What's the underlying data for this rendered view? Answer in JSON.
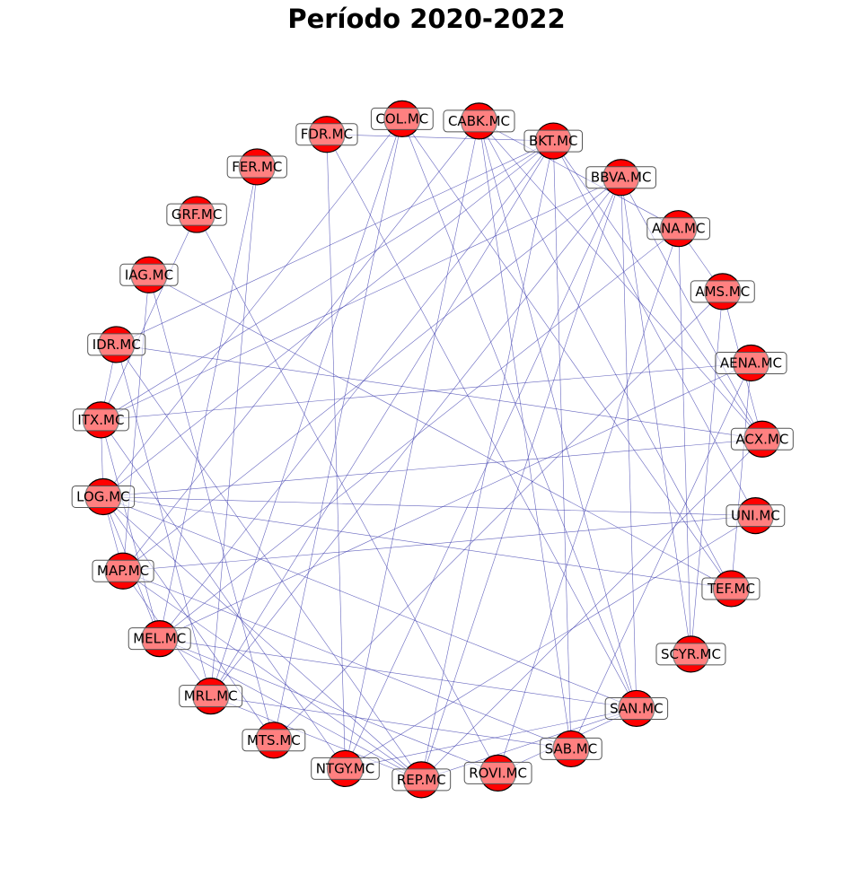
{
  "title": "Período 2020-2022",
  "colors": {
    "node_fill": "#ff0000",
    "node_stroke": "#000000",
    "label_box_fill": "#ffffff",
    "label_box_stroke": "#555555",
    "edge": "#3333aa"
  },
  "nodes": [
    "COL.MC",
    "CABK.MC",
    "BKT.MC",
    "BBVA.MC",
    "ANA.MC",
    "AMS.MC",
    "AENA.MC",
    "ACX.MC",
    "UNI.MC",
    "TEF.MC",
    "SCYR.MC",
    "SAN.MC",
    "SAB.MC",
    "ROVI.MC",
    "REP.MC",
    "NTGY.MC",
    "MTS.MC",
    "MRL.MC",
    "MEL.MC",
    "MAP.MC",
    "LOG.MC",
    "ITX.MC",
    "IDR.MC",
    "IAG.MC",
    "GRF.MC",
    "FER.MC",
    "FDR.MC"
  ],
  "edges": [
    [
      "COL.MC",
      "MTS.MC"
    ],
    [
      "COL.MC",
      "MRL.MC"
    ],
    [
      "COL.MC",
      "LOG.MC"
    ],
    [
      "COL.MC",
      "SAN.MC"
    ],
    [
      "CABK.MC",
      "ANA.MC"
    ],
    [
      "CABK.MC",
      "SAN.MC"
    ],
    [
      "CABK.MC",
      "ACX.MC"
    ],
    [
      "CABK.MC",
      "NTGY.MC"
    ],
    [
      "CABK.MC",
      "MAP.MC"
    ],
    [
      "CABK.MC",
      "SAB.MC"
    ],
    [
      "BKT.MC",
      "SAB.MC"
    ],
    [
      "BKT.MC",
      "ACX.MC"
    ],
    [
      "BKT.MC",
      "UNI.MC"
    ],
    [
      "BKT.MC",
      "ITX.MC"
    ],
    [
      "BKT.MC",
      "LOG.MC"
    ],
    [
      "BKT.MC",
      "MEL.MC"
    ],
    [
      "BKT.MC",
      "REP.MC"
    ],
    [
      "BKT.MC",
      "IDR.MC"
    ],
    [
      "BKT.MC",
      "MRL.MC"
    ],
    [
      "BBVA.MC",
      "SAN.MC"
    ],
    [
      "BBVA.MC",
      "ACX.MC"
    ],
    [
      "BBVA.MC",
      "MAP.MC"
    ],
    [
      "BBVA.MC",
      "REP.MC"
    ],
    [
      "BBVA.MC",
      "ITX.MC"
    ],
    [
      "BBVA.MC",
      "NTGY.MC"
    ],
    [
      "BBVA.MC",
      "SCYR.MC"
    ],
    [
      "ANA.MC",
      "ROVI.MC"
    ],
    [
      "ANA.MC",
      "AMS.MC"
    ],
    [
      "ANA.MC",
      "SCYR.MC"
    ],
    [
      "AMS.MC",
      "MTS.MC"
    ],
    [
      "AMS.MC",
      "ACX.MC"
    ],
    [
      "AMS.MC",
      "SCYR.MC"
    ],
    [
      "AENA.MC",
      "MEL.MC"
    ],
    [
      "AENA.MC",
      "SAB.MC"
    ],
    [
      "AENA.MC",
      "ITX.MC"
    ],
    [
      "ACX.MC",
      "LOG.MC"
    ],
    [
      "ACX.MC",
      "REP.MC"
    ],
    [
      "UNI.MC",
      "MAP.MC"
    ],
    [
      "UNI.MC",
      "NTGY.MC"
    ],
    [
      "TEF.MC",
      "IAG.MC"
    ],
    [
      "TEF.MC",
      "LOG.MC"
    ],
    [
      "SAN.MC",
      "MEL.MC"
    ],
    [
      "SAN.MC",
      "LOG.MC"
    ],
    [
      "SAN.MC",
      "NTGY.MC"
    ],
    [
      "SAN.MC",
      "REP.MC"
    ],
    [
      "SAN.MC",
      "ROVI.MC"
    ],
    [
      "SAN.MC",
      "FDR.MC"
    ],
    [
      "SAB.MC",
      "MRL.MC"
    ],
    [
      "SAB.MC",
      "MAP.MC"
    ],
    [
      "ROVI.MC",
      "GRF.MC"
    ],
    [
      "ROVI.MC",
      "MEL.MC"
    ],
    [
      "REP.MC",
      "MAP.MC"
    ],
    [
      "REP.MC",
      "IDR.MC"
    ],
    [
      "REP.MC",
      "LOG.MC"
    ],
    [
      "REP.MC",
      "MEL.MC"
    ],
    [
      "REP.MC",
      "MRL.MC"
    ],
    [
      "NTGY.MC",
      "FDR.MC"
    ],
    [
      "NTGY.MC",
      "ITX.MC"
    ],
    [
      "MTS.MC",
      "LOG.MC"
    ],
    [
      "MTS.MC",
      "IAG.MC"
    ],
    [
      "MRL.MC",
      "FER.MC"
    ],
    [
      "MRL.MC",
      "IDR.MC"
    ],
    [
      "MRL.MC",
      "MAP.MC"
    ],
    [
      "MEL.MC",
      "LOG.MC"
    ],
    [
      "MEL.MC",
      "ITX.MC"
    ],
    [
      "MEL.MC",
      "FER.MC"
    ],
    [
      "MAP.MC",
      "IAG.MC"
    ],
    [
      "MAP.MC",
      "LOG.MC"
    ],
    [
      "LOG.MC",
      "ITX.MC"
    ],
    [
      "ITX.MC",
      "IDR.MC"
    ],
    [
      "ITX.MC",
      "GRF.MC"
    ],
    [
      "IDR.MC",
      "ACX.MC"
    ],
    [
      "FDR.MC",
      "BKT.MC"
    ],
    [
      "COL.MC",
      "TEF.MC"
    ],
    [
      "CABK.MC",
      "TEF.MC"
    ],
    [
      "BBVA.MC",
      "MRL.MC"
    ],
    [
      "ANA.MC",
      "MEL.MC"
    ],
    [
      "AENA.MC",
      "TEF.MC"
    ],
    [
      "UNI.MC",
      "LOG.MC"
    ]
  ]
}
